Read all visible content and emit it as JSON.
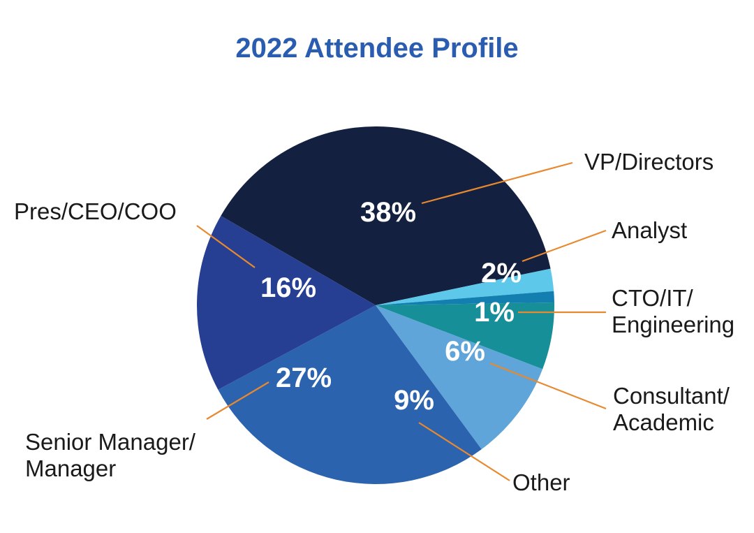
{
  "chart_data": {
    "type": "pie",
    "title": "2022 Attendee Profile",
    "slices": [
      {
        "label": "VP/Directors",
        "value": 38,
        "display": "38%",
        "color": "#13203f"
      },
      {
        "label": "Analyst",
        "value": 2,
        "display": "2%",
        "color": "#5ec8ea"
      },
      {
        "label": "CTO/IT/ Engineering",
        "value": 1,
        "display": "1%",
        "color": "#137fb0"
      },
      {
        "label": "Consultant/ Academic",
        "value": 6,
        "display": "6%",
        "color": "#168f99"
      },
      {
        "label": "Other",
        "value": 9,
        "display": "9%",
        "color": "#5fa5d9"
      },
      {
        "label": "Senior Manager/ Manager",
        "value": 27,
        "display": "27%",
        "color": "#2b63ae"
      },
      {
        "label": "Pres/CEO/COO",
        "value": 16,
        "display": "16%",
        "color": "#263f92"
      }
    ],
    "legend": "none",
    "leader_line_color": "#e8892f"
  }
}
